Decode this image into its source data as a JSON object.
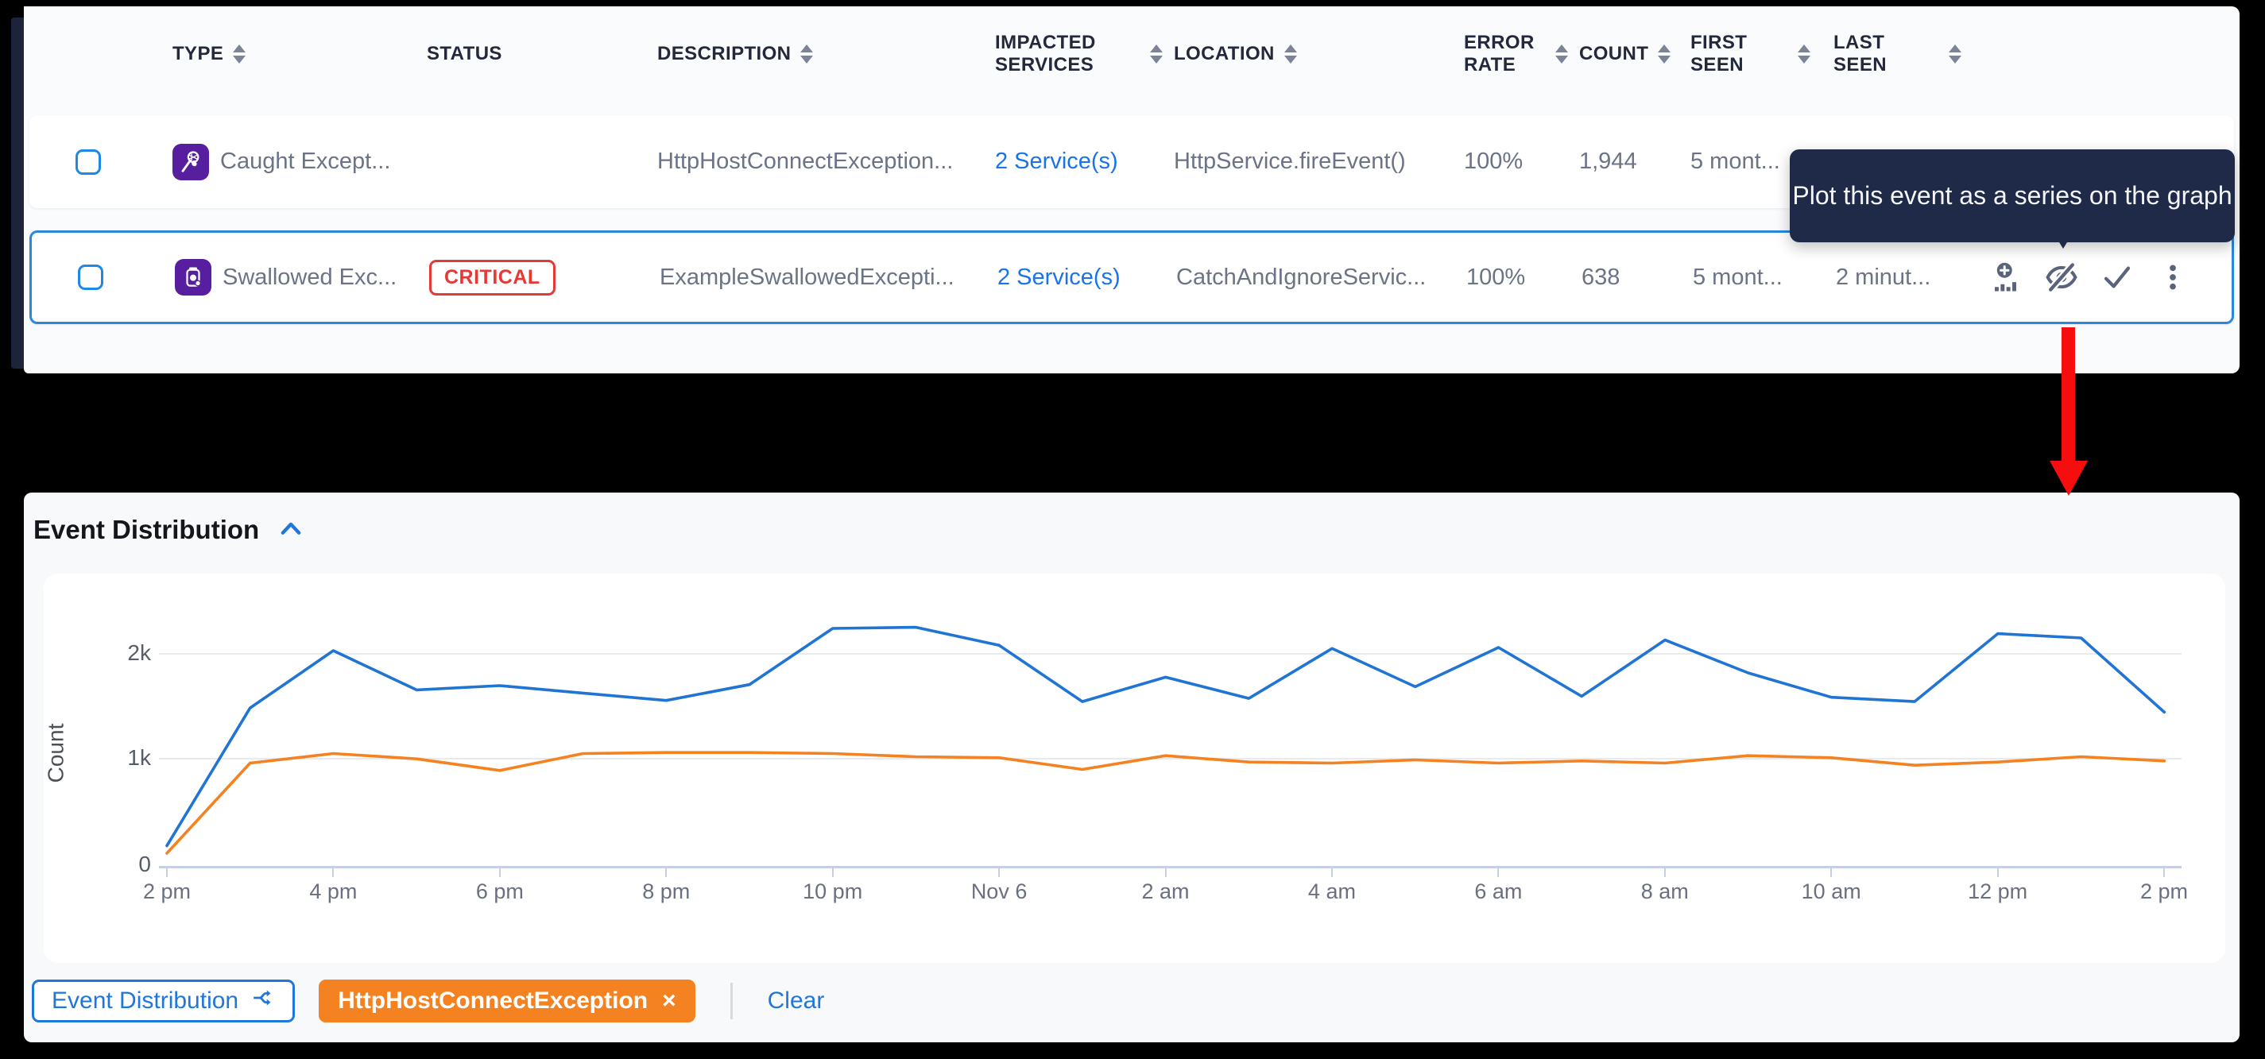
{
  "table": {
    "columns": [
      {
        "label": "TYPE",
        "sort": "inline"
      },
      {
        "label": "STATUS",
        "sort": "none"
      },
      {
        "label": "DESCRIPTION",
        "sort": "inline"
      },
      {
        "label": "IMPACTED\nSERVICES",
        "sort": "right"
      },
      {
        "label": "LOCATION",
        "sort": "inline"
      },
      {
        "label": "ERROR\nRATE",
        "sort": "right"
      },
      {
        "label": "COUNT",
        "sort": "right"
      },
      {
        "label": "FIRST SEEN",
        "sort": "right"
      },
      {
        "label": "LAST SEEN",
        "sort": "right"
      }
    ],
    "rows": [
      {
        "type_label": "Caught Except...",
        "status": "",
        "description": "HttpHostConnectException...",
        "impacted": "2 Service(s)",
        "location": "HttpService.fireEvent()",
        "error_rate": "100%",
        "count": "1,944",
        "first_seen": "5 mont...",
        "last_seen": ""
      },
      {
        "type_label": "Swallowed Exc...",
        "status": "CRITICAL",
        "description": "ExampleSwallowedExcepti...",
        "impacted": "2 Service(s)",
        "location": "CatchAndIgnoreServic...",
        "error_rate": "100%",
        "count": "638",
        "first_seen": "5 mont...",
        "last_seen": "2 minut...",
        "action_icons": [
          "plot-event-on-graph",
          "hide-eye-off",
          "resolve-check",
          "kebab-menu"
        ]
      }
    ]
  },
  "tooltip": {
    "text": "Plot this event as a series on the graph"
  },
  "chart_panel": {
    "title": "Event Distribution",
    "collapse_icon": "chevron-up"
  },
  "chart_data": {
    "type": "line",
    "x": [
      "2 pm Nov 5",
      "3 pm",
      "4 pm",
      "5 pm",
      "6 pm",
      "7 pm",
      "8 pm",
      "9 pm",
      "10 pm",
      "11 pm",
      "12 am Nov 6",
      "1 am",
      "2 am",
      "3 am",
      "4 am",
      "5 am",
      "6 am",
      "7 am",
      "8 am",
      "9 am",
      "10 am",
      "11 am",
      "12 pm",
      "1 pm",
      "2 pm"
    ],
    "tick_labels": [
      "2 pm",
      "4 pm",
      "6 pm",
      "8 pm",
      "10 pm",
      "Nov 6",
      "2 am",
      "4 am",
      "6 am",
      "8 am",
      "10 am",
      "12 pm",
      "2 pm"
    ],
    "ylabel": "Count",
    "ytick_labels": [
      "0",
      "1k",
      "2k"
    ],
    "ylim": [
      0,
      2400
    ],
    "grid": "horizontal",
    "legend_position": "none",
    "series": [
      {
        "name": "Event Distribution",
        "color": "#1f74d4",
        "values": [
          190,
          1490,
          2030,
          1660,
          1700,
          1630,
          1560,
          1710,
          2240,
          2250,
          2080,
          1550,
          1780,
          1580,
          2050,
          1690,
          2060,
          1600,
          2130,
          1820,
          1590,
          1550,
          2190,
          2150,
          1450
        ]
      },
      {
        "name": "HttpHostConnectException",
        "color": "#f58220",
        "values": [
          120,
          970,
          1060,
          1010,
          900,
          1060,
          1070,
          1070,
          1060,
          1030,
          1020,
          910,
          1040,
          980,
          970,
          1000,
          970,
          990,
          970,
          1040,
          1020,
          950,
          980,
          1030,
          990
        ]
      }
    ]
  },
  "chips": {
    "series_chip": "Event Distribution",
    "filter_chip": "HttpHostConnectException",
    "filter_close": "×",
    "clear_label": "Clear"
  },
  "colors": {
    "accent_blue": "#2176d9",
    "accent_orange": "#f58220",
    "critical_red": "#e53935",
    "tooltip_bg": "#1e2a47",
    "arrow_red": "#f60d0d",
    "type_icon_purple": "#571fa0"
  }
}
